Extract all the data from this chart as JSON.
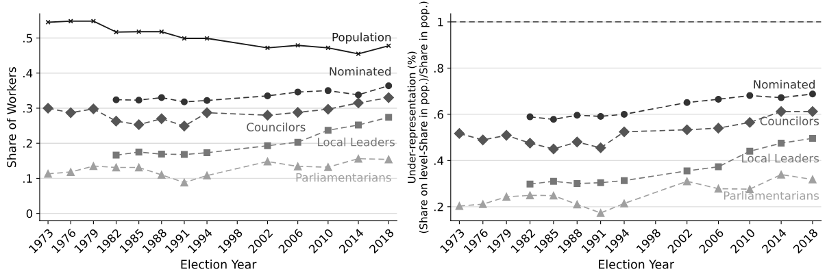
{
  "chart_data": [
    {
      "type": "line",
      "xlabel": "Election Year",
      "ylabel": "Share of Workers",
      "xlim": [
        1971.9,
        2019.1
      ],
      "ylim": [
        -0.021,
        0.569
      ],
      "xticks": [
        1973,
        1976,
        1979,
        1982,
        1985,
        1988,
        1991,
        1994,
        1998,
        2002,
        2006,
        2010,
        2014,
        2018
      ],
      "yticks": [
        {
          "value": 0,
          "label": "0"
        },
        {
          "value": 0.1,
          "label": ".1"
        },
        {
          "value": 0.2,
          "label": ".2"
        },
        {
          "value": 0.3,
          "label": ".3"
        },
        {
          "value": 0.4,
          "label": ".4"
        },
        {
          "value": 0.5,
          "label": ".5"
        }
      ],
      "grid": "y",
      "legend": false,
      "series": [
        {
          "name": "Population",
          "color": "#1a1a1a",
          "marker": "cross",
          "line_style": "solid",
          "x": [
            1973,
            1976,
            1979,
            1982,
            1985,
            1988,
            1991,
            1994,
            2002,
            2006,
            2010,
            2014,
            2018
          ],
          "values": [
            0.545,
            0.548,
            0.548,
            0.517,
            0.518,
            0.518,
            0.499,
            0.499,
            0.472,
            0.479,
            0.472,
            0.455,
            0.478
          ]
        },
        {
          "name": "Nominated",
          "color": "#333333",
          "marker": "circle",
          "line_style": "dashed",
          "x": [
            1982,
            1985,
            1988,
            1991,
            1994,
            2002,
            2006,
            2010,
            2014,
            2018
          ],
          "values": [
            0.324,
            0.323,
            0.33,
            0.318,
            0.322,
            0.335,
            0.346,
            0.35,
            0.338,
            0.364
          ]
        },
        {
          "name": "Councilors",
          "color": "#555555",
          "marker": "diamond",
          "line_style": "dashed",
          "x": [
            1973,
            1976,
            1979,
            1982,
            1985,
            1988,
            1991,
            1994,
            2002,
            2006,
            2010,
            2014,
            2018
          ],
          "values": [
            0.3,
            0.287,
            0.298,
            0.263,
            0.253,
            0.27,
            0.249,
            0.287,
            0.28,
            0.288,
            0.297,
            0.315,
            0.33
          ]
        },
        {
          "name": "Local Leaders",
          "color": "#777777",
          "marker": "square",
          "line_style": "dashed",
          "x": [
            1982,
            1985,
            1988,
            1991,
            1994,
            2002,
            2006,
            2010,
            2014,
            2018
          ],
          "values": [
            0.166,
            0.175,
            0.169,
            0.168,
            0.173,
            0.193,
            0.203,
            0.237,
            0.252,
            0.274
          ]
        },
        {
          "name": "Parliamentarians",
          "color": "#a0a0a0",
          "marker": "triangle",
          "line_style": "dashed",
          "x": [
            1973,
            1976,
            1979,
            1982,
            1985,
            1988,
            1991,
            1994,
            2002,
            2006,
            2010,
            2014,
            2018
          ],
          "values": [
            0.113,
            0.118,
            0.135,
            0.131,
            0.131,
            0.11,
            0.088,
            0.108,
            0.148,
            0.134,
            0.132,
            0.156,
            0.154
          ]
        }
      ]
    },
    {
      "type": "line",
      "xlabel": "Election Year",
      "ylabel": "Under-representation (%)\n(Share on level-Share in pop.)/Share in pop.)",
      "xlim": [
        1971.9,
        2019.1
      ],
      "ylim": [
        0.139,
        1.035
      ],
      "xticks": [
        1973,
        1976,
        1979,
        1982,
        1985,
        1988,
        1991,
        1994,
        1998,
        2002,
        2006,
        2010,
        2014,
        2018
      ],
      "yticks": [
        {
          "value": 0.2,
          "label": ".2"
        },
        {
          "value": 0.4,
          "label": ".4"
        },
        {
          "value": 0.6,
          "label": ".6"
        },
        {
          "value": 0.8,
          "label": ".8"
        },
        1
      ],
      "grid": "y",
      "legend": false,
      "ref_lines": [
        {
          "axis": "y",
          "value": 1,
          "color": "#555555",
          "line_style": "dashed"
        }
      ],
      "series": [
        {
          "name": "Nominated",
          "color": "#333333",
          "marker": "circle",
          "line_style": "dashed",
          "x": [
            1982,
            1985,
            1988,
            1991,
            1994,
            2002,
            2006,
            2010,
            2014,
            2018
          ],
          "values": [
            0.589,
            0.578,
            0.596,
            0.591,
            0.6,
            0.651,
            0.665,
            0.681,
            0.672,
            0.688
          ]
        },
        {
          "name": "Councilors",
          "color": "#555555",
          "marker": "diamond",
          "line_style": "dashed",
          "x": [
            1973,
            1976,
            1979,
            1982,
            1985,
            1988,
            1991,
            1994,
            2002,
            2006,
            2010,
            2014,
            2018
          ],
          "values": [
            0.517,
            0.489,
            0.509,
            0.475,
            0.45,
            0.48,
            0.455,
            0.524,
            0.533,
            0.54,
            0.565,
            0.612,
            0.612
          ]
        },
        {
          "name": "Local Leaders",
          "color": "#777777",
          "marker": "square",
          "line_style": "dashed",
          "x": [
            1982,
            1985,
            1988,
            1991,
            1994,
            2002,
            2006,
            2010,
            2014,
            2018
          ],
          "values": [
            0.298,
            0.31,
            0.3,
            0.304,
            0.313,
            0.355,
            0.373,
            0.44,
            0.475,
            0.496
          ]
        },
        {
          "name": "Parliamentarians",
          "color": "#a0a0a0",
          "marker": "triangle",
          "line_style": "dashed",
          "x": [
            1973,
            1976,
            1979,
            1982,
            1985,
            1988,
            1991,
            1994,
            2002,
            2006,
            2010,
            2014,
            2018
          ],
          "values": [
            0.203,
            0.211,
            0.243,
            0.249,
            0.248,
            0.21,
            0.173,
            0.214,
            0.31,
            0.278,
            0.276,
            0.339,
            0.318
          ]
        }
      ]
    }
  ]
}
